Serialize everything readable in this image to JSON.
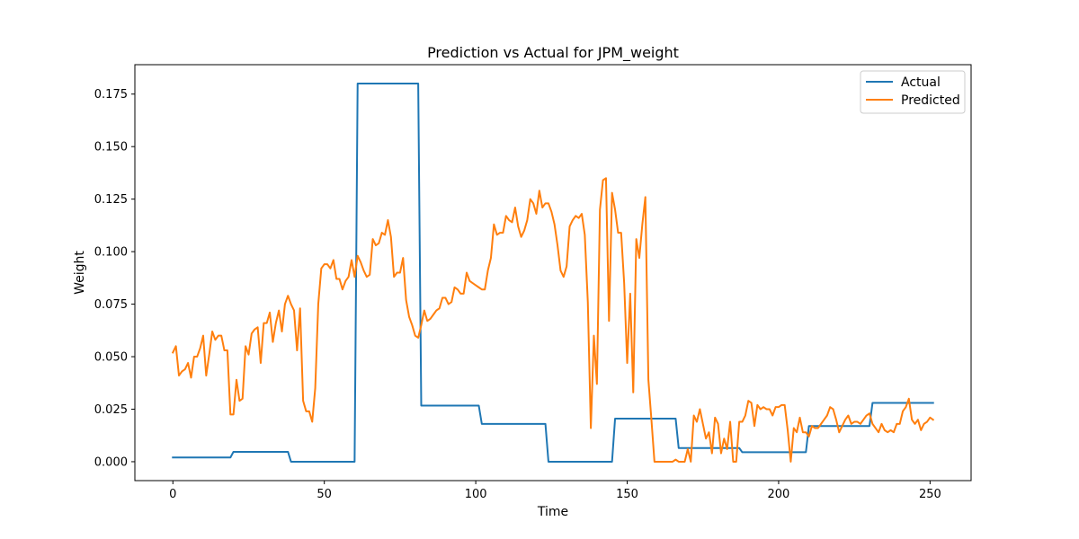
{
  "chart_data": {
    "type": "line",
    "title": "Prediction vs Actual for JPM_weight",
    "xlabel": "Time",
    "ylabel": "Weight",
    "xlim": [
      -12.55,
      263.55
    ],
    "ylim": [
      -0.009,
      0.189
    ],
    "xticks": [
      0,
      50,
      100,
      150,
      200,
      250
    ],
    "xtick_labels": [
      "0",
      "50",
      "100",
      "150",
      "200",
      "250"
    ],
    "yticks": [
      0.0,
      0.025,
      0.05,
      0.075,
      0.1,
      0.125,
      0.15,
      0.175
    ],
    "ytick_labels": [
      "0.000",
      "0.025",
      "0.050",
      "0.075",
      "0.100",
      "0.125",
      "0.150",
      "0.175"
    ],
    "grid": false,
    "legend_position": "top-right",
    "series": [
      {
        "name": "Actual",
        "color": "#1f77b4",
        "points": [
          [
            0,
            0.002
          ],
          [
            19,
            0.002
          ],
          [
            20,
            0.0047
          ],
          [
            38,
            0.0047
          ],
          [
            39,
            0.0
          ],
          [
            60,
            0.0
          ],
          [
            61,
            0.18
          ],
          [
            81,
            0.18
          ],
          [
            82,
            0.0267
          ],
          [
            101,
            0.0267
          ],
          [
            102,
            0.018
          ],
          [
            123,
            0.018
          ],
          [
            124,
            0.0
          ],
          [
            145,
            0.0
          ],
          [
            146,
            0.0205
          ],
          [
            166,
            0.0205
          ],
          [
            167,
            0.0065
          ],
          [
            187,
            0.0065
          ],
          [
            188,
            0.0045
          ],
          [
            209,
            0.0045
          ],
          [
            210,
            0.017
          ],
          [
            230,
            0.017
          ],
          [
            231,
            0.028
          ],
          [
            251,
            0.028
          ]
        ]
      },
      {
        "name": "Predicted",
        "color": "#ff7f0e",
        "points": [
          [
            0,
            0.052
          ],
          [
            1,
            0.055
          ],
          [
            2,
            0.041
          ],
          [
            3,
            0.043
          ],
          [
            4,
            0.044
          ],
          [
            5,
            0.047
          ],
          [
            6,
            0.04
          ],
          [
            7,
            0.05
          ],
          [
            8,
            0.05
          ],
          [
            9,
            0.054
          ],
          [
            10,
            0.06
          ],
          [
            11,
            0.041
          ],
          [
            12,
            0.051
          ],
          [
            13,
            0.062
          ],
          [
            14,
            0.058
          ],
          [
            15,
            0.06
          ],
          [
            16,
            0.06
          ],
          [
            17,
            0.053
          ],
          [
            18,
            0.053
          ],
          [
            19,
            0.0225
          ],
          [
            20,
            0.0225
          ],
          [
            21,
            0.039
          ],
          [
            22,
            0.029
          ],
          [
            23,
            0.03
          ],
          [
            24,
            0.055
          ],
          [
            25,
            0.051
          ],
          [
            26,
            0.061
          ],
          [
            27,
            0.063
          ],
          [
            28,
            0.064
          ],
          [
            29,
            0.047
          ],
          [
            30,
            0.066
          ],
          [
            31,
            0.066
          ],
          [
            32,
            0.071
          ],
          [
            33,
            0.057
          ],
          [
            34,
            0.066
          ],
          [
            35,
            0.072
          ],
          [
            36,
            0.062
          ],
          [
            37,
            0.075
          ],
          [
            38,
            0.079
          ],
          [
            39,
            0.075
          ],
          [
            40,
            0.072
          ],
          [
            41,
            0.053
          ],
          [
            42,
            0.073
          ],
          [
            43,
            0.029
          ],
          [
            44,
            0.024
          ],
          [
            45,
            0.024
          ],
          [
            46,
            0.019
          ],
          [
            47,
            0.035
          ],
          [
            48,
            0.075
          ],
          [
            49,
            0.092
          ],
          [
            50,
            0.094
          ],
          [
            51,
            0.094
          ],
          [
            52,
            0.092
          ],
          [
            53,
            0.096
          ],
          [
            54,
            0.087
          ],
          [
            55,
            0.087
          ],
          [
            56,
            0.082
          ],
          [
            57,
            0.086
          ],
          [
            58,
            0.088
          ],
          [
            59,
            0.096
          ],
          [
            60,
            0.088
          ],
          [
            61,
            0.098
          ],
          [
            62,
            0.095
          ],
          [
            63,
            0.091
          ],
          [
            64,
            0.088
          ],
          [
            65,
            0.089
          ],
          [
            66,
            0.106
          ],
          [
            67,
            0.103
          ],
          [
            68,
            0.104
          ],
          [
            69,
            0.109
          ],
          [
            70,
            0.108
          ],
          [
            71,
            0.115
          ],
          [
            72,
            0.107
          ],
          [
            73,
            0.088
          ],
          [
            74,
            0.09
          ],
          [
            75,
            0.09
          ],
          [
            76,
            0.097
          ],
          [
            77,
            0.077
          ],
          [
            78,
            0.069
          ],
          [
            79,
            0.065
          ],
          [
            80,
            0.06
          ],
          [
            81,
            0.059
          ],
          [
            82,
            0.065
          ],
          [
            83,
            0.072
          ],
          [
            84,
            0.067
          ],
          [
            85,
            0.068
          ],
          [
            86,
            0.07
          ],
          [
            87,
            0.072
          ],
          [
            88,
            0.073
          ],
          [
            89,
            0.078
          ],
          [
            90,
            0.078
          ],
          [
            91,
            0.075
          ],
          [
            92,
            0.076
          ],
          [
            93,
            0.083
          ],
          [
            94,
            0.082
          ],
          [
            95,
            0.08
          ],
          [
            96,
            0.08
          ],
          [
            97,
            0.09
          ],
          [
            98,
            0.086
          ],
          [
            99,
            0.085
          ],
          [
            100,
            0.084
          ],
          [
            101,
            0.083
          ],
          [
            102,
            0.082
          ],
          [
            103,
            0.082
          ],
          [
            104,
            0.091
          ],
          [
            105,
            0.097
          ],
          [
            106,
            0.113
          ],
          [
            107,
            0.108
          ],
          [
            108,
            0.109
          ],
          [
            109,
            0.109
          ],
          [
            110,
            0.117
          ],
          [
            111,
            0.115
          ],
          [
            112,
            0.114
          ],
          [
            113,
            0.121
          ],
          [
            114,
            0.112
          ],
          [
            115,
            0.107
          ],
          [
            116,
            0.11
          ],
          [
            117,
            0.115
          ],
          [
            118,
            0.125
          ],
          [
            119,
            0.123
          ],
          [
            120,
            0.118
          ],
          [
            121,
            0.129
          ],
          [
            122,
            0.121
          ],
          [
            123,
            0.123
          ],
          [
            124,
            0.123
          ],
          [
            125,
            0.119
          ],
          [
            126,
            0.113
          ],
          [
            127,
            0.103
          ],
          [
            128,
            0.091
          ],
          [
            129,
            0.088
          ],
          [
            130,
            0.093
          ],
          [
            131,
            0.112
          ],
          [
            132,
            0.115
          ],
          [
            133,
            0.117
          ],
          [
            134,
            0.116
          ],
          [
            135,
            0.118
          ],
          [
            136,
            0.108
          ],
          [
            137,
            0.076
          ],
          [
            138,
            0.016
          ],
          [
            139,
            0.06
          ],
          [
            140,
            0.037
          ],
          [
            141,
            0.12
          ],
          [
            142,
            0.134
          ],
          [
            143,
            0.135
          ],
          [
            144,
            0.067
          ],
          [
            145,
            0.128
          ],
          [
            146,
            0.12
          ],
          [
            147,
            0.109
          ],
          [
            148,
            0.109
          ],
          [
            149,
            0.085
          ],
          [
            150,
            0.047
          ],
          [
            151,
            0.08
          ],
          [
            152,
            0.033
          ],
          [
            153,
            0.106
          ],
          [
            154,
            0.097
          ],
          [
            155,
            0.113
          ],
          [
            156,
            0.126
          ],
          [
            157,
            0.039
          ],
          [
            158,
            0.02
          ],
          [
            159,
            0.0
          ],
          [
            160,
            0.0
          ],
          [
            161,
            0.0
          ],
          [
            162,
            0.0
          ],
          [
            163,
            0.0
          ],
          [
            164,
            0.0
          ],
          [
            165,
            0.0
          ],
          [
            166,
            0.001
          ],
          [
            167,
            0.0
          ],
          [
            168,
            0.0
          ],
          [
            169,
            0.0
          ],
          [
            170,
            0.006
          ],
          [
            171,
            0.0
          ],
          [
            172,
            0.022
          ],
          [
            173,
            0.019
          ],
          [
            174,
            0.025
          ],
          [
            175,
            0.018
          ],
          [
            176,
            0.011
          ],
          [
            177,
            0.014
          ],
          [
            178,
            0.004
          ],
          [
            179,
            0.021
          ],
          [
            180,
            0.018
          ],
          [
            181,
            0.004
          ],
          [
            182,
            0.011
          ],
          [
            183,
            0.006
          ],
          [
            184,
            0.019
          ],
          [
            185,
            0.0
          ],
          [
            186,
            0.0
          ],
          [
            187,
            0.019
          ],
          [
            188,
            0.019
          ],
          [
            189,
            0.022
          ],
          [
            190,
            0.029
          ],
          [
            191,
            0.028
          ],
          [
            192,
            0.017
          ],
          [
            193,
            0.027
          ],
          [
            194,
            0.025
          ],
          [
            195,
            0.026
          ],
          [
            196,
            0.025
          ],
          [
            197,
            0.025
          ],
          [
            198,
            0.022
          ],
          [
            199,
            0.026
          ],
          [
            200,
            0.026
          ],
          [
            201,
            0.027
          ],
          [
            202,
            0.027
          ],
          [
            203,
            0.015
          ],
          [
            204,
            0.0
          ],
          [
            205,
            0.016
          ],
          [
            206,
            0.014
          ],
          [
            207,
            0.021
          ],
          [
            208,
            0.014
          ],
          [
            209,
            0.014
          ],
          [
            210,
            0.012
          ],
          [
            211,
            0.017
          ],
          [
            212,
            0.016
          ],
          [
            213,
            0.016
          ],
          [
            214,
            0.018
          ],
          [
            215,
            0.02
          ],
          [
            216,
            0.022
          ],
          [
            217,
            0.026
          ],
          [
            218,
            0.025
          ],
          [
            219,
            0.02
          ],
          [
            220,
            0.014
          ],
          [
            221,
            0.017
          ],
          [
            222,
            0.02
          ],
          [
            223,
            0.022
          ],
          [
            224,
            0.018
          ],
          [
            225,
            0.019
          ],
          [
            226,
            0.019
          ],
          [
            227,
            0.018
          ],
          [
            228,
            0.02
          ],
          [
            229,
            0.022
          ],
          [
            230,
            0.023
          ],
          [
            231,
            0.018
          ],
          [
            232,
            0.016
          ],
          [
            233,
            0.014
          ],
          [
            234,
            0.018
          ],
          [
            235,
            0.015
          ],
          [
            236,
            0.014
          ],
          [
            237,
            0.015
          ],
          [
            238,
            0.014
          ],
          [
            239,
            0.018
          ],
          [
            240,
            0.018
          ],
          [
            241,
            0.024
          ],
          [
            242,
            0.026
          ],
          [
            243,
            0.03
          ],
          [
            244,
            0.02
          ],
          [
            245,
            0.018
          ],
          [
            246,
            0.02
          ],
          [
            247,
            0.015
          ],
          [
            248,
            0.018
          ],
          [
            249,
            0.019
          ],
          [
            250,
            0.021
          ],
          [
            251,
            0.02
          ]
        ]
      }
    ]
  }
}
